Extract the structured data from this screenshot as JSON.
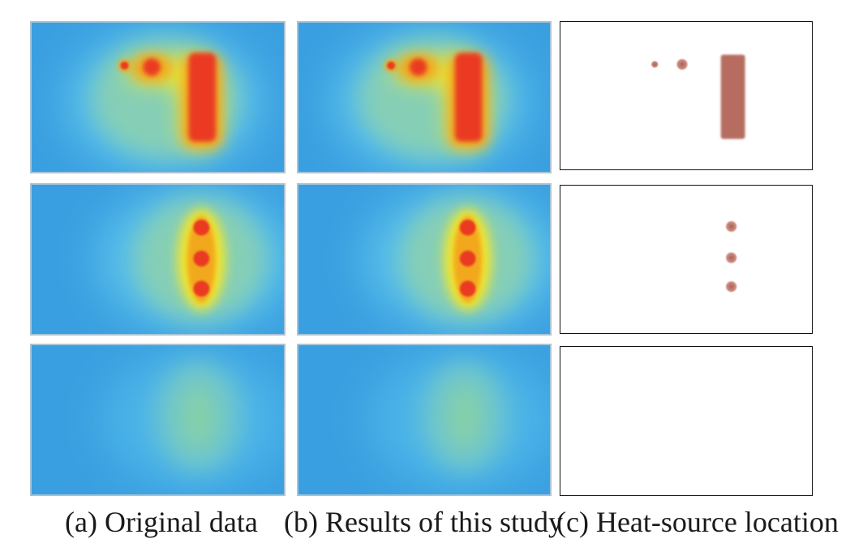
{
  "figure": {
    "captions": {
      "a": "(a) Original data",
      "b": "(b) Results of this study",
      "c": "(c) Heat-source location"
    },
    "columns": [
      "original-data",
      "results-of-this-study",
      "heat-source-location"
    ],
    "rows": [
      {
        "case": "point-sources-and-rectangular-source"
      },
      {
        "case": "three-vertical-point-sources"
      },
      {
        "case": "no-heat-source"
      }
    ]
  },
  "colors": {
    "cold": "#3a9fe0",
    "cool": "#5cc7e8",
    "mild": "#8fd3a0",
    "warm": "#f3e82a",
    "hot": "#f2b119",
    "source": "#ea3a22",
    "marker": "#a8584a"
  }
}
